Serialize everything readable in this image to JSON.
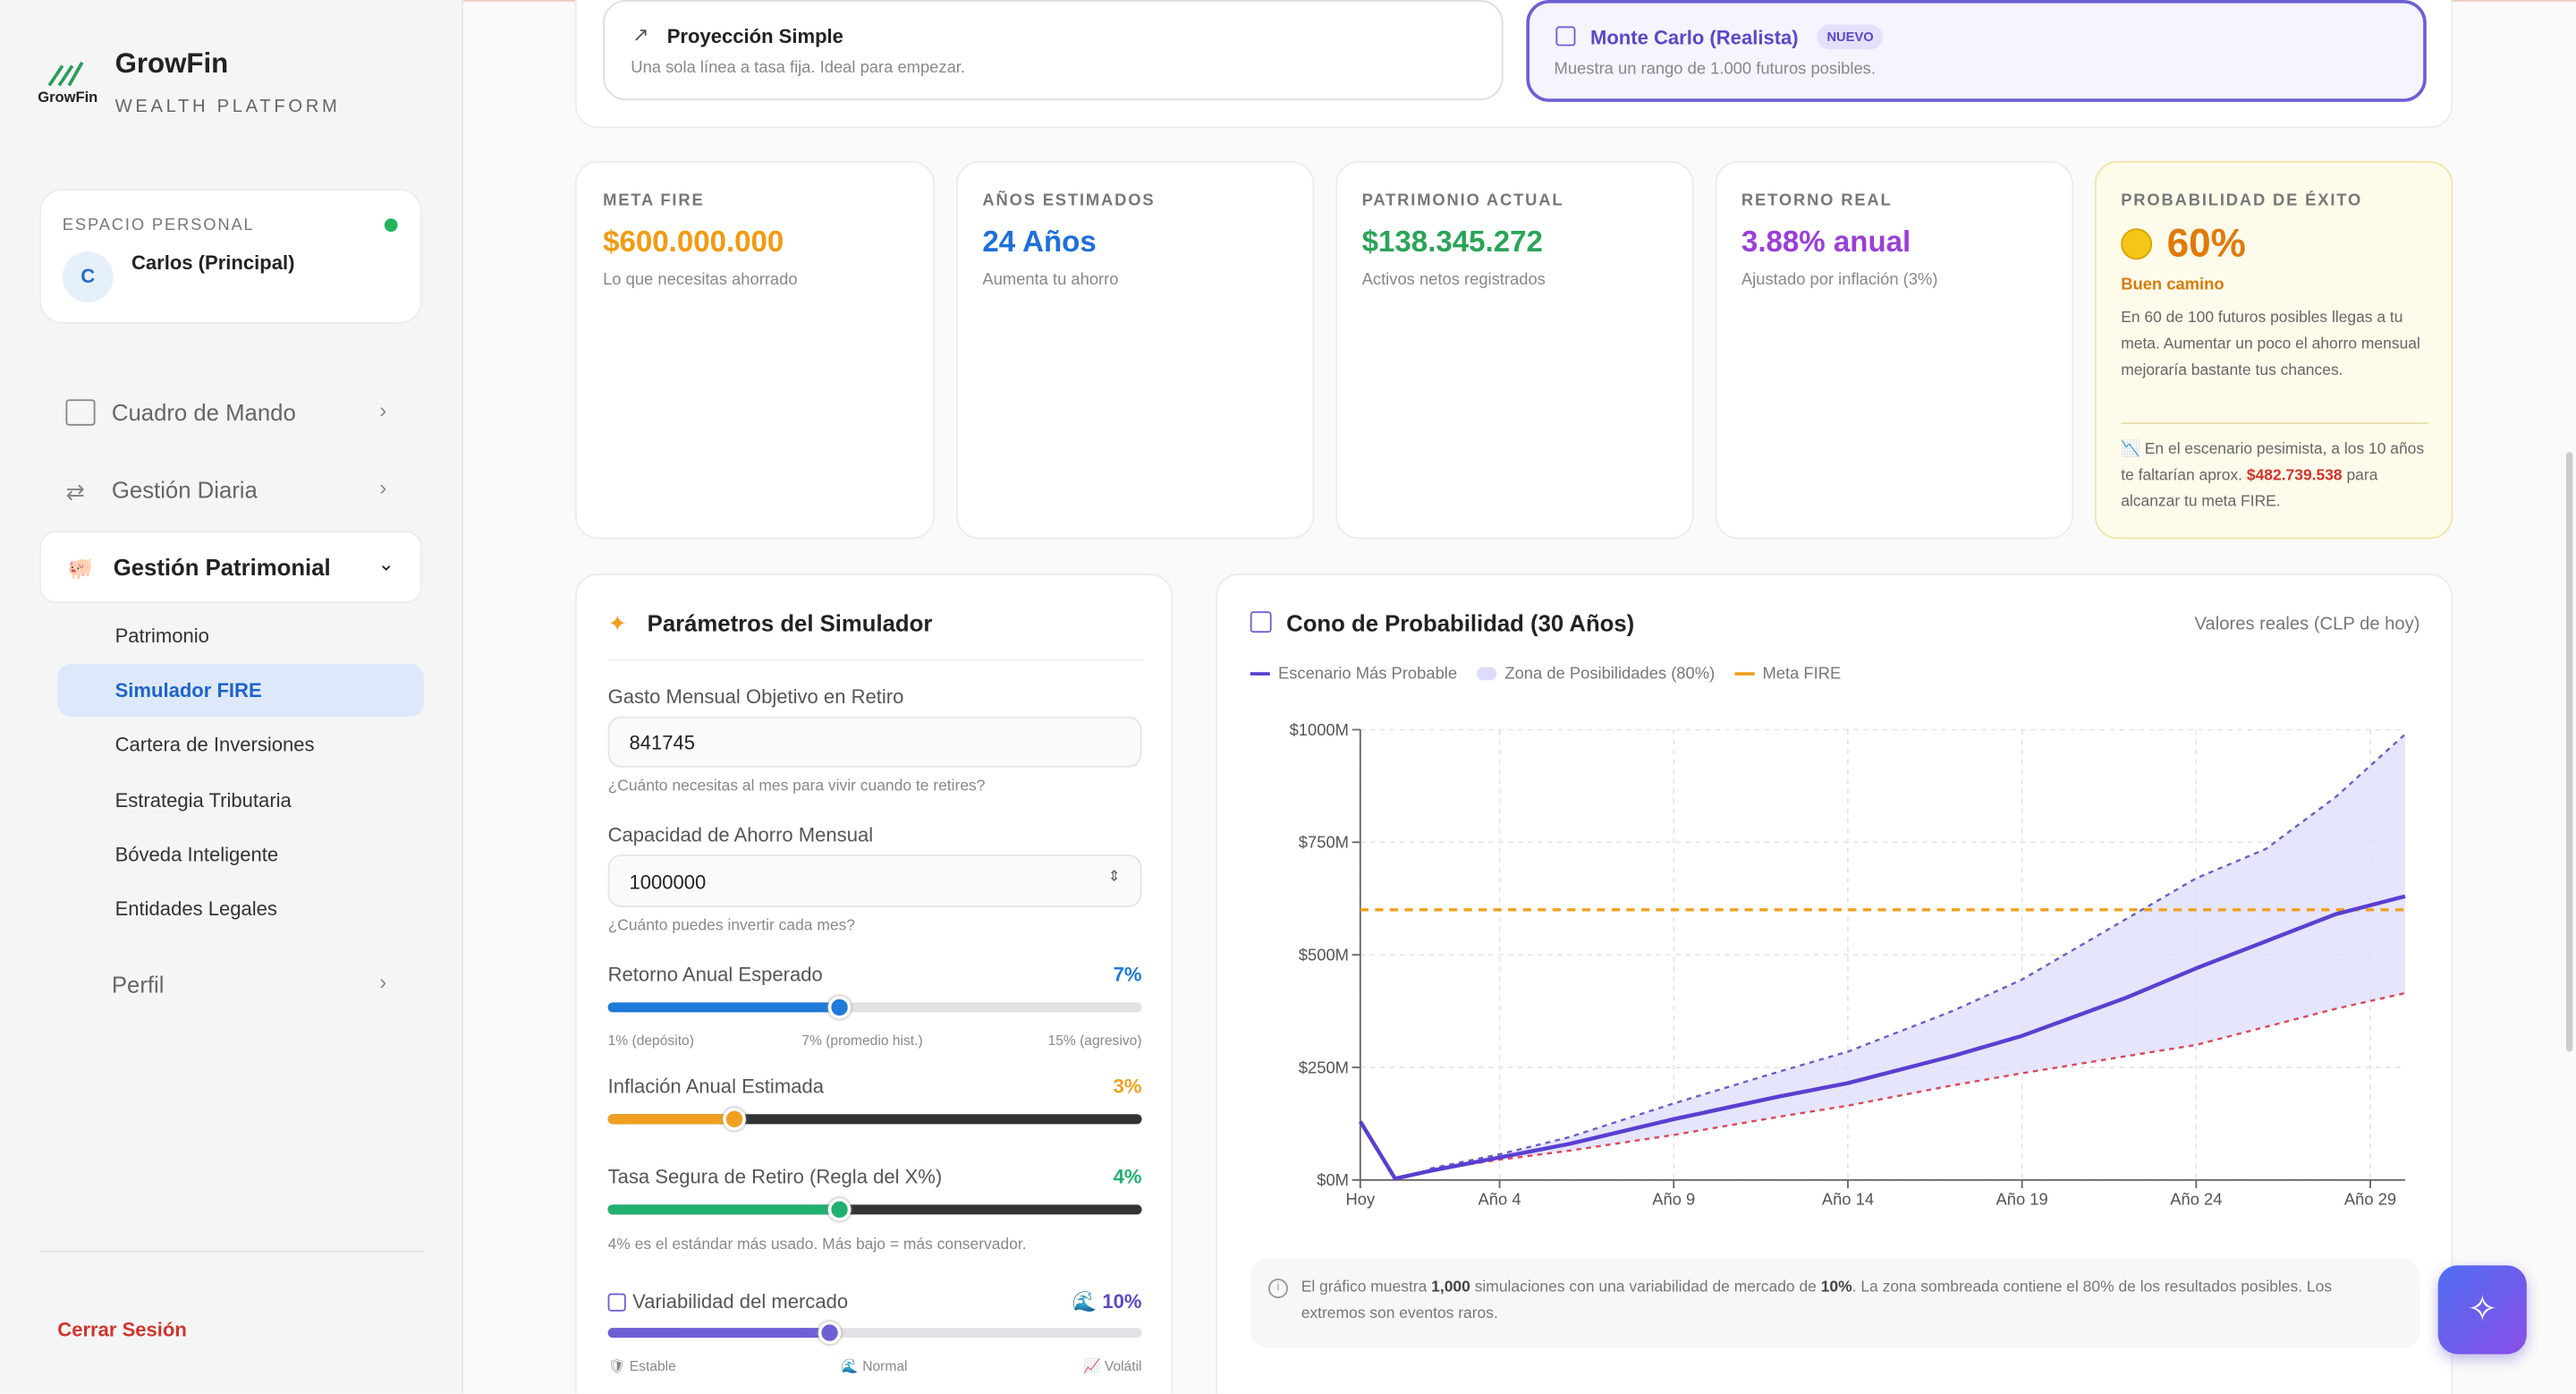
{
  "sidebar": {
    "logo_text": "GrowFin",
    "brand": "GrowFin",
    "tagline": "WEALTH PLATFORM",
    "workspace": {
      "label": "ESPACIO PERSONAL",
      "avatar": "C",
      "user": "Carlos (Principal)"
    },
    "nav": [
      "Cuadro de Mando",
      "Gestión Diaria",
      "Gestión Patrimonial"
    ],
    "subnav": [
      "Patrimonio",
      "Simulador FIRE",
      "Cartera de Inversiones",
      "Estrategia Tributaria",
      "Bóveda Inteligente",
      "Entidades Legales"
    ],
    "profile": "Perfil",
    "logout": "Cerrar Sesión"
  },
  "modes": [
    {
      "title": "Proyección Simple",
      "desc": "Una sola línea a tasa fija. Ideal para empezar."
    },
    {
      "title": "Monte Carlo (Realista)",
      "badge": "NUEVO",
      "desc": "Muestra un rango de 1.000 futuros posibles."
    }
  ],
  "kpis": [
    {
      "label": "META FIRE",
      "value": "$600.000.000",
      "desc": "Lo que necesitas ahorrado"
    },
    {
      "label": "AÑOS ESTIMADOS",
      "value": "24 Años",
      "desc": "Aumenta tu ahorro"
    },
    {
      "label": "PATRIMONIO ACTUAL",
      "value": "$138.345.272",
      "desc": "Activos netos registrados"
    },
    {
      "label": "RETORNO REAL",
      "value": "3.88% anual",
      "desc": "Ajustado por inflación (3%)"
    }
  ],
  "probability": {
    "label": "PROBABILIDAD DE ÉXITO",
    "value": "60%",
    "status": "Buen camino",
    "text": "En 60 de 100 futuros posibles llegas a tu meta. Aumentar un poco el ahorro mensual mejoraría bastante tus chances.",
    "warning": "En el escenario pesimista, a los 10 años te faltarían aprox.",
    "amount": "$482.739.538",
    "tail": "para alcanzar tu meta FIRE."
  },
  "params": {
    "title": "Parámetros del Simulador",
    "fields": [
      {
        "label": "Gasto Mensual Objetivo en Retiro",
        "value": "841745",
        "help": "¿Cuánto necesitas al mes para vivir cuando te retires?"
      },
      {
        "label": "Capacidad de Ahorro Mensual",
        "value": "1000000",
        "help": "¿Cuánto puedes invertir cada mes?"
      }
    ],
    "sliders": [
      {
        "label": "Retorno Anual Esperado",
        "value": "7%",
        "marks": [
          "1% (depósito)",
          "7% (promedio hist.)",
          "15% (agresivo)"
        ]
      },
      {
        "label": "Inflación Anual Estimada",
        "value": "3%"
      },
      {
        "label": "Tasa Segura de Retiro (Regla del X%)",
        "value": "4%",
        "help": "4% es el estándar más usado. Más bajo = más conservador."
      },
      {
        "label": "Variabilidad del mercado",
        "value": "10%",
        "marks": [
          "Estable",
          "Normal",
          "Volátil"
        ]
      }
    ]
  },
  "chart_card": {
    "note": "Valores reales (CLP de hoy)",
    "footnote": [
      "El gráfico muestra ",
      "1,000",
      " simulaciones con una variabilidad de mercado de ",
      "10%",
      ". La zona sombreada contiene el 80% de los resultados posibles. Los extremos son eventos raros."
    ]
  },
  "chart_data": {
    "type": "line",
    "title": "Cono de Probabilidad (30 Años)",
    "x": [
      0,
      1,
      2,
      4,
      6,
      9,
      12,
      14,
      17,
      19,
      22,
      24,
      26,
      28,
      30
    ],
    "xlim": [
      0,
      30
    ],
    "xticks": [
      {
        "value": 0,
        "label": "Hoy"
      },
      {
        "value": 4,
        "label": "Año 4"
      },
      {
        "value": 9,
        "label": "Año 9"
      },
      {
        "value": 14,
        "label": "Año 14"
      },
      {
        "value": 19,
        "label": "Año 19"
      },
      {
        "value": 24,
        "label": "Año 24"
      },
      {
        "value": 29,
        "label": "Año 29"
      }
    ],
    "ylim": [
      0,
      1000
    ],
    "yticks": [
      {
        "value": 0,
        "label": "$0M"
      },
      {
        "value": 250,
        "label": "$250M"
      },
      {
        "value": 500,
        "label": "$500M"
      },
      {
        "value": 750,
        "label": "$750M"
      },
      {
        "value": 1000,
        "label": "$1000M"
      }
    ],
    "grid": true,
    "series": [
      {
        "name": "Escenario Más Probable",
        "color": "#5a3fd0",
        "values": [
          130,
          3,
          20,
          50,
          80,
          135,
          185,
          215,
          275,
          320,
          405,
          470,
          530,
          590,
          630
        ]
      }
    ],
    "band": {
      "name": "Zona de Posibilidades (80%)",
      "color": "#dcdcfa",
      "upper_color": "#6a5fc0",
      "lower_color": "#d9485a",
      "upper": [
        null,
        null,
        25,
        57,
        95,
        170,
        240,
        285,
        375,
        445,
        580,
        670,
        735,
        850,
        990
      ],
      "lower": [
        null,
        null,
        22,
        45,
        65,
        100,
        140,
        165,
        210,
        237,
        275,
        300,
        340,
        380,
        415
      ]
    },
    "goal": {
      "name": "Meta FIRE",
      "value": 600,
      "color": "#f0a020"
    }
  }
}
